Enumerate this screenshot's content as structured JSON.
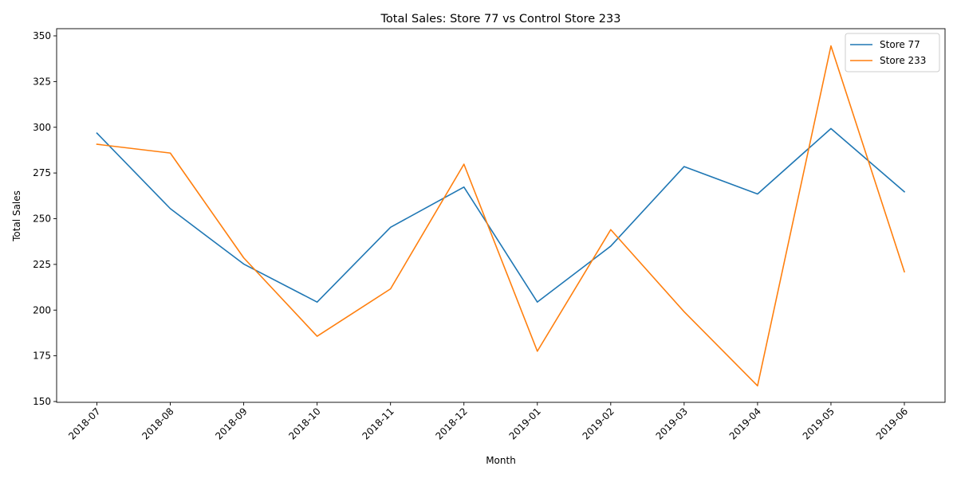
{
  "chart_data": {
    "type": "line",
    "title": "Total Sales: Store 77 vs Control Store 233",
    "xlabel": "Month",
    "ylabel": "Total Sales",
    "categories": [
      "2018-07",
      "2018-08",
      "2018-09",
      "2018-10",
      "2018-11",
      "2018-12",
      "2019-01",
      "2019-02",
      "2019-03",
      "2019-04",
      "2019-05",
      "2019-06"
    ],
    "ylim": [
      150,
      350
    ],
    "yticks": [
      150,
      175,
      200,
      225,
      250,
      275,
      300,
      325,
      350
    ],
    "grid": false,
    "legend_position": "top-right",
    "series": [
      {
        "name": "Store 77",
        "color": "#1f77b4",
        "values": [
          296.8,
          255.5,
          225.2,
          204.4,
          245.3,
          267.3,
          204.4,
          235.0,
          278.5,
          263.5,
          299.3,
          264.7
        ]
      },
      {
        "name": "Store 233",
        "color": "#ff7f0e",
        "values": [
          290.7,
          285.9,
          228.6,
          185.7,
          211.6,
          279.8,
          177.5,
          244.0,
          199.1,
          158.6,
          344.5,
          221.0
        ]
      }
    ]
  }
}
